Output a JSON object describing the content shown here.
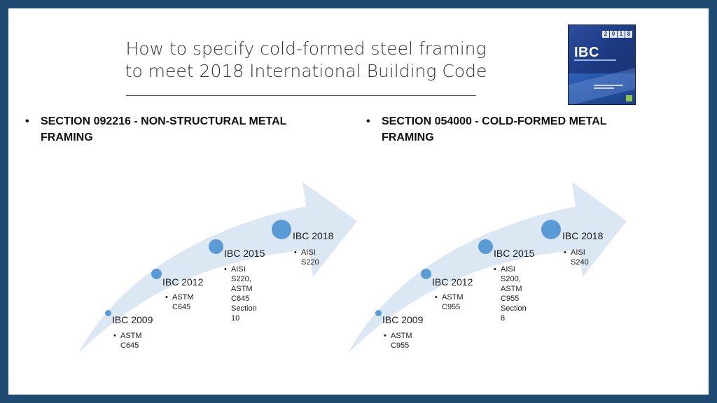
{
  "title": {
    "line1": "How to specify cold-formed steel framing",
    "line2": "to meet 2018 International Building Code"
  },
  "cover": {
    "abbr": "IBC",
    "year_digits": [
      "2",
      "0",
      "1",
      "8"
    ]
  },
  "colors": {
    "frame": "#1f4a72",
    "milestone_dot": "#5b9bd5",
    "arrow_fill": "#dbe7f3"
  },
  "sections": [
    {
      "bullet": "•",
      "heading": "SECTION 092216 - NON-STRUCTURAL METAL FRAMING",
      "milestones": [
        {
          "label": "IBC 2009",
          "items": [
            "ASTM\nC645"
          ]
        },
        {
          "label": "IBC 2012",
          "items": [
            "ASTM\nC645"
          ]
        },
        {
          "label": "IBC 2015",
          "items": [
            "AISI S220,\nASTM\nC645\nSection 10"
          ]
        },
        {
          "label": "IBC 2018",
          "items": [
            "AISI S220"
          ]
        }
      ]
    },
    {
      "bullet": "•",
      "heading": "SECTION 054000 - COLD-FORMED METAL FRAMING",
      "milestones": [
        {
          "label": "IBC 2009",
          "items": [
            "ASTM\nC955"
          ]
        },
        {
          "label": "IBC 2012",
          "items": [
            "ASTM\nC955"
          ]
        },
        {
          "label": "IBC 2015",
          "items": [
            "AISI S200,\nASTM\nC955\nSection 8"
          ]
        },
        {
          "label": "IBC 2018",
          "items": [
            "AISI S240"
          ]
        }
      ]
    }
  ]
}
